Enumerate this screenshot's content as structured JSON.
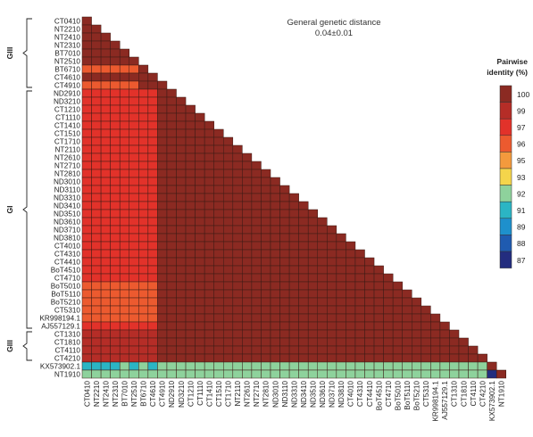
{
  "chart_data": {
    "type": "heatmap",
    "title": "General genetic distance",
    "subtitle": "0.04±0.01",
    "legend_title": [
      "Pairwise",
      "identity (%)"
    ],
    "legend_ticks": [
      100,
      99,
      97,
      96,
      95,
      93,
      92,
      91,
      89,
      88,
      87
    ],
    "legend_colors": [
      "#8B2A22",
      "#B52D27",
      "#E2322A",
      "#EC5A2F",
      "#F39A3D",
      "#F4D54B",
      "#8ED29C",
      "#2BB5C4",
      "#1E90CC",
      "#1F5BB0",
      "#232D7F"
    ],
    "legend_position": "right",
    "labels": [
      "CT0410",
      "NT2210",
      "NT2410",
      "NT2310",
      "BT7010",
      "NT2510",
      "BT6710",
      "CT4610",
      "CT4910",
      "ND2910",
      "ND3210",
      "CT1210",
      "CT1110",
      "CT1410",
      "CT1510",
      "CT1710",
      "NT2110",
      "NT2610",
      "NT2710",
      "NT2810",
      "ND3010",
      "ND3110",
      "ND3310",
      "ND3410",
      "ND3510",
      "ND3610",
      "ND3710",
      "ND3810",
      "CT4010",
      "CT4310",
      "CT4410",
      "BoT4510",
      "CT4710",
      "BoT5010",
      "BoT5110",
      "BoT5210",
      "CT5310",
      "KR998194.1",
      "AJ557129.1",
      "CT1310",
      "CT1810",
      "CT4110",
      "CT4210",
      "KX573902.1",
      "NT1910"
    ],
    "groups": [
      {
        "name": "GIII",
        "from": 0,
        "to": 8
      },
      {
        "name": "GI",
        "from": 9,
        "to": 38
      },
      {
        "name": "GIII",
        "from": 39,
        "to": 42
      }
    ],
    "default_identity": 100,
    "cells": [
      {
        "row": 6,
        "cols": [
          0,
          5
        ],
        "value": 96
      },
      {
        "row": 8,
        "cols": [
          0,
          5
        ],
        "value": 96
      },
      {
        "row": 9,
        "cols": [
          0,
          7
        ],
        "value": 97
      },
      {
        "row": 10,
        "cols": [
          0,
          7
        ],
        "value": 97
      },
      {
        "row": 11,
        "cols": [
          0,
          7
        ],
        "value": 97
      },
      {
        "row": 12,
        "cols": [
          0,
          7
        ],
        "value": 97
      },
      {
        "row": 13,
        "cols": [
          0,
          7
        ],
        "value": 97
      },
      {
        "row": 14,
        "cols": [
          0,
          7
        ],
        "value": 97
      },
      {
        "row": 15,
        "cols": [
          0,
          7
        ],
        "value": 97
      },
      {
        "row": 16,
        "cols": [
          0,
          7
        ],
        "value": 97
      },
      {
        "row": 17,
        "cols": [
          0,
          7
        ],
        "value": 97
      },
      {
        "row": 18,
        "cols": [
          0,
          7
        ],
        "value": 97
      },
      {
        "row": 19,
        "cols": [
          0,
          7
        ],
        "value": 97
      },
      {
        "row": 20,
        "cols": [
          0,
          7
        ],
        "value": 97
      },
      {
        "row": 21,
        "cols": [
          0,
          7
        ],
        "value": 97
      },
      {
        "row": 22,
        "cols": [
          0,
          7
        ],
        "value": 97
      },
      {
        "row": 23,
        "cols": [
          0,
          7
        ],
        "value": 97
      },
      {
        "row": 24,
        "cols": [
          0,
          7
        ],
        "value": 97
      },
      {
        "row": 25,
        "cols": [
          0,
          7
        ],
        "value": 97
      },
      {
        "row": 26,
        "cols": [
          0,
          7
        ],
        "value": 97
      },
      {
        "row": 27,
        "cols": [
          0,
          7
        ],
        "value": 97
      },
      {
        "row": 28,
        "cols": [
          0,
          7
        ],
        "value": 97
      },
      {
        "row": 29,
        "cols": [
          0,
          7
        ],
        "value": 97
      },
      {
        "row": 30,
        "cols": [
          0,
          7
        ],
        "value": 97
      },
      {
        "row": 31,
        "cols": [
          0,
          7
        ],
        "value": 97
      },
      {
        "row": 32,
        "cols": [
          0,
          7
        ],
        "value": 97
      },
      {
        "row": 33,
        "cols": [
          0,
          7
        ],
        "value": 96
      },
      {
        "row": 34,
        "cols": [
          0,
          7
        ],
        "value": 96
      },
      {
        "row": 35,
        "cols": [
          0,
          7
        ],
        "value": 96
      },
      {
        "row": 36,
        "cols": [
          0,
          7
        ],
        "value": 96
      },
      {
        "row": 37,
        "cols": [
          0,
          7
        ],
        "value": 96
      },
      {
        "row": 38,
        "cols": [
          0,
          7
        ],
        "value": 97
      },
      {
        "row": 39,
        "cols": [
          0,
          7
        ],
        "value": 99
      },
      {
        "row": 40,
        "cols": [
          0,
          7
        ],
        "value": 99
      },
      {
        "row": 41,
        "cols": [
          0,
          7
        ],
        "value": 99
      },
      {
        "row": 42,
        "cols": [
          0,
          7
        ],
        "value": 99
      },
      {
        "row": 43,
        "cols": [
          0,
          3
        ],
        "value": 91
      },
      {
        "row": 43,
        "cols": [
          4,
          4
        ],
        "value": 92
      },
      {
        "row": 43,
        "cols": [
          5,
          5
        ],
        "value": 91
      },
      {
        "row": 43,
        "cols": [
          6,
          6
        ],
        "value": 92
      },
      {
        "row": 43,
        "cols": [
          7,
          7
        ],
        "value": 91
      },
      {
        "row": 43,
        "cols": [
          8,
          42
        ],
        "value": 92
      },
      {
        "row": 44,
        "cols": [
          0,
          42
        ],
        "value": 92
      },
      {
        "row": 44,
        "cols": [
          43,
          43
        ],
        "value": 87
      }
    ]
  }
}
